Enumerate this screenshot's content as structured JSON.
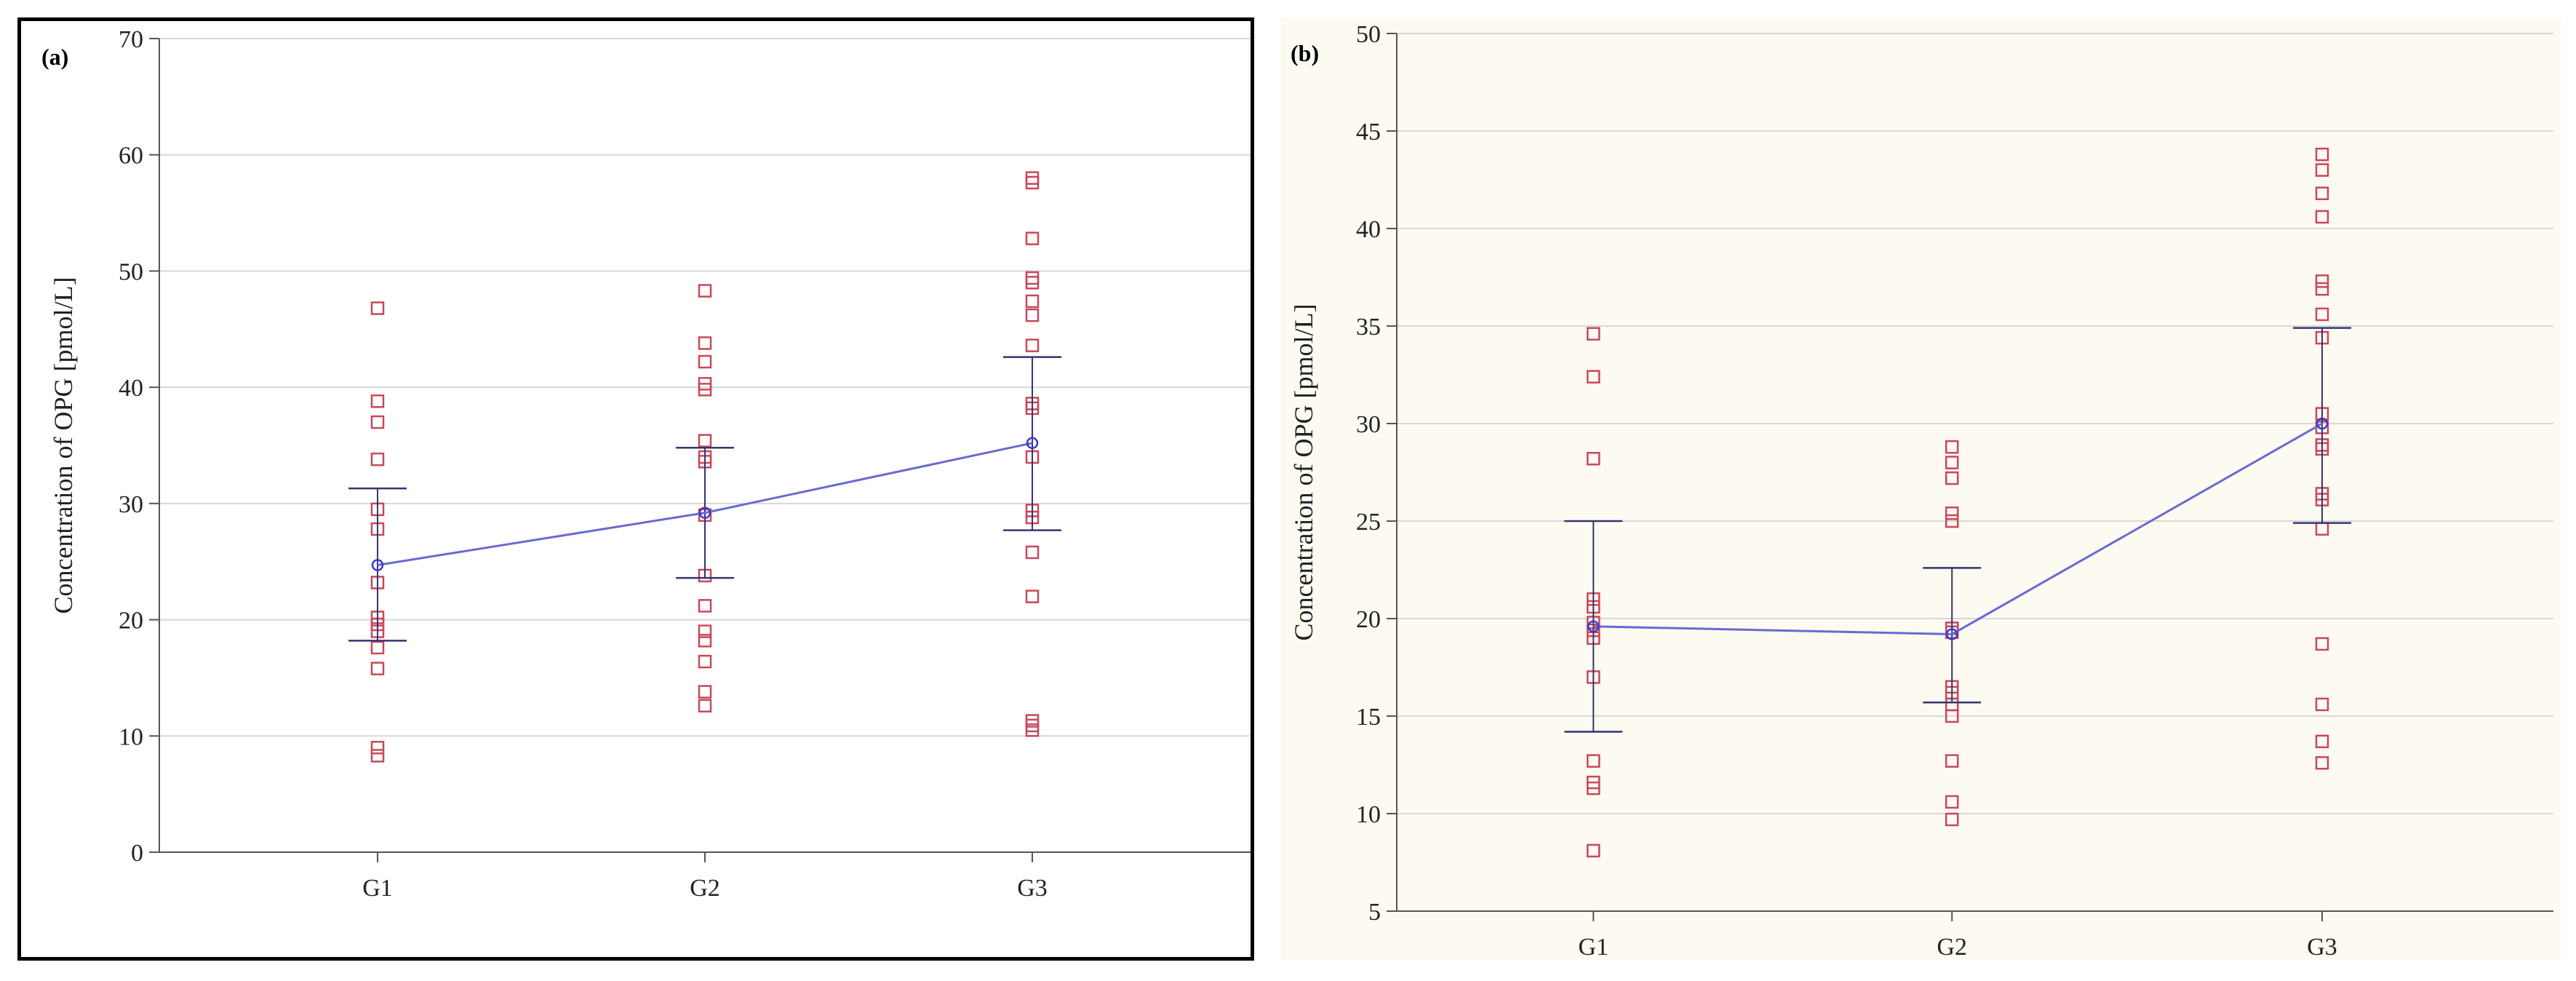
{
  "chart_data": [
    {
      "id": "a",
      "panel_label": "(a)",
      "type": "scatter",
      "ylabel": "Concentration of OPG [pmol/L]",
      "ylim": [
        0,
        70
      ],
      "yticks": [
        0,
        10,
        20,
        30,
        40,
        50,
        60,
        70
      ],
      "grid": true,
      "categories": [
        "G1",
        "G2",
        "G3"
      ],
      "points": [
        [
          46.8,
          38.8,
          37.0,
          33.8,
          29.5,
          27.8,
          23.2,
          20.2,
          19.6,
          19.0,
          17.6,
          15.8,
          9.0,
          8.3
        ],
        [
          48.3,
          43.8,
          42.2,
          40.3,
          39.8,
          35.4,
          34.0,
          33.6,
          29.0,
          23.8,
          21.2,
          19.0,
          18.2,
          16.4,
          13.8,
          12.6
        ],
        [
          58.0,
          57.6,
          52.8,
          49.4,
          49.0,
          47.4,
          46.2,
          43.6,
          38.6,
          38.2,
          34.0,
          29.4,
          28.8,
          25.8,
          22.0,
          11.3,
          10.9,
          10.5
        ]
      ],
      "mean": [
        24.7,
        29.2,
        35.2
      ],
      "error_upper": [
        31.3,
        34.8,
        42.6
      ],
      "error_lower": [
        18.2,
        23.6,
        27.7
      ]
    },
    {
      "id": "b",
      "panel_label": "(b)",
      "type": "scatter",
      "ylabel": "Concentration of OPG [pmol/L]",
      "ylim": [
        5,
        50
      ],
      "yticks": [
        5,
        10,
        15,
        20,
        25,
        30,
        35,
        40,
        45,
        50
      ],
      "grid": true,
      "categories": [
        "G1",
        "G2",
        "G3"
      ],
      "points": [
        [
          34.6,
          32.4,
          28.2,
          21.0,
          20.6,
          19.8,
          19.4,
          19.0,
          17.0,
          12.7,
          11.6,
          11.3,
          8.1
        ],
        [
          28.8,
          28.0,
          27.2,
          25.4,
          25.0,
          19.5,
          19.3,
          16.5,
          16.2,
          15.6,
          15.0,
          12.7,
          10.6,
          9.7
        ],
        [
          43.8,
          43.0,
          41.8,
          40.6,
          37.3,
          36.9,
          35.6,
          34.4,
          30.5,
          29.8,
          28.9,
          28.7,
          26.4,
          26.1,
          24.6,
          18.7,
          15.6,
          13.7,
          12.6
        ]
      ],
      "mean": [
        19.6,
        19.2,
        30.0
      ],
      "error_upper": [
        25.0,
        22.6,
        34.9
      ],
      "error_lower": [
        14.2,
        15.7,
        24.9
      ]
    }
  ],
  "colors": {
    "mean_line": "#6a6ad0",
    "mean_marker": "#3a3ac8",
    "error_bar": "#35356e",
    "point": "#c8485a",
    "grid": "#d8d8d8",
    "axis": "#555555"
  }
}
